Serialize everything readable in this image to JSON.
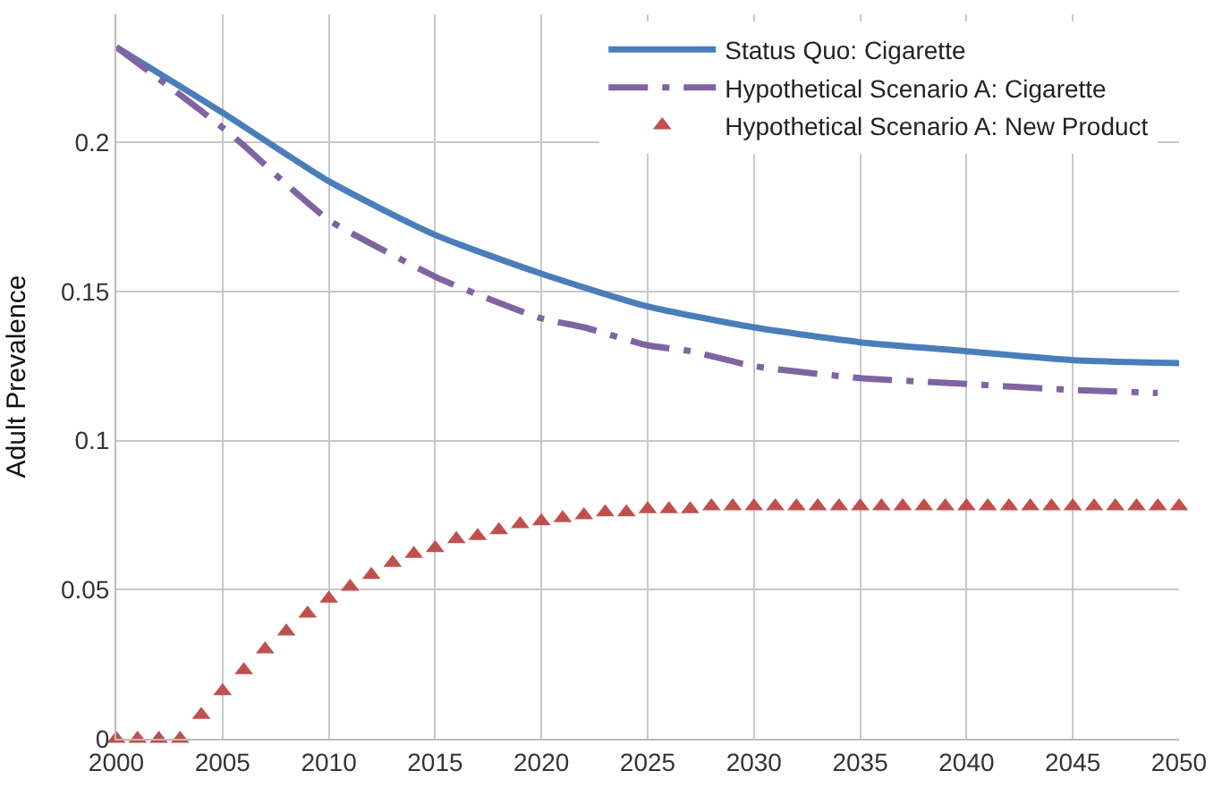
{
  "chart_data": {
    "type": "line",
    "ylabel": "Adult Prevalence",
    "xlim": [
      2000,
      2050
    ],
    "xticks": [
      2000,
      2005,
      2010,
      2015,
      2020,
      2025,
      2030,
      2035,
      2040,
      2045,
      2050
    ],
    "ylim": [
      0,
      0.243
    ],
    "yticks": [
      0,
      0.05,
      0.1,
      0.15,
      0.2
    ],
    "grid": true,
    "legend": "top right",
    "series": [
      {
        "name": "Status Quo: Cigarette",
        "color": "#4a7ebb",
        "line_style": "solid",
        "marker": "none",
        "x": [
          2000,
          2005,
          2010,
          2015,
          2020,
          2025,
          2030,
          2035,
          2040,
          2045,
          2050
        ],
        "values": [
          0.232,
          0.21,
          0.187,
          0.169,
          0.156,
          0.145,
          0.138,
          0.133,
          0.13,
          0.127,
          0.126
        ]
      },
      {
        "name": "Hypothetical Scenario A: Cigarette",
        "color": "#8064a2",
        "line_style": "dashdot",
        "marker": "none",
        "x": [
          2000,
          2003,
          2005,
          2006,
          2008,
          2010,
          2012,
          2015,
          2017,
          2020,
          2022,
          2025,
          2027,
          2030,
          2035,
          2040,
          2045,
          2049
        ],
        "values": [
          0.232,
          0.216,
          0.205,
          0.199,
          0.186,
          0.174,
          0.166,
          0.155,
          0.149,
          0.141,
          0.138,
          0.132,
          0.13,
          0.125,
          0.121,
          0.119,
          0.117,
          0.116
        ]
      },
      {
        "name": "Hypothetical Scenario A: New Product",
        "type": "scatter",
        "color": "#c0504d",
        "marker": "triangle",
        "x": [
          2000,
          2001,
          2002,
          2003,
          2004,
          2005,
          2006,
          2007,
          2008,
          2009,
          2010,
          2011,
          2012,
          2013,
          2014,
          2015,
          2016,
          2017,
          2018,
          2019,
          2020,
          2021,
          2022,
          2023,
          2024,
          2025,
          2026,
          2027,
          2028,
          2029,
          2030,
          2031,
          2032,
          2033,
          2034,
          2035,
          2036,
          2037,
          2038,
          2039,
          2040,
          2041,
          2042,
          2043,
          2044,
          2045,
          2046,
          2047,
          2048,
          2049,
          2050
        ],
        "values": [
          0,
          0,
          0,
          0,
          0.008,
          0.016,
          0.023,
          0.03,
          0.036,
          0.042,
          0.047,
          0.051,
          0.055,
          0.059,
          0.062,
          0.064,
          0.067,
          0.068,
          0.07,
          0.072,
          0.073,
          0.074,
          0.075,
          0.076,
          0.076,
          0.077,
          0.077,
          0.077,
          0.078,
          0.078,
          0.078,
          0.078,
          0.078,
          0.078,
          0.078,
          0.078,
          0.078,
          0.078,
          0.078,
          0.078,
          0.078,
          0.078,
          0.078,
          0.078,
          0.078,
          0.078,
          0.078,
          0.078,
          0.078,
          0.078,
          0.078
        ]
      }
    ]
  }
}
